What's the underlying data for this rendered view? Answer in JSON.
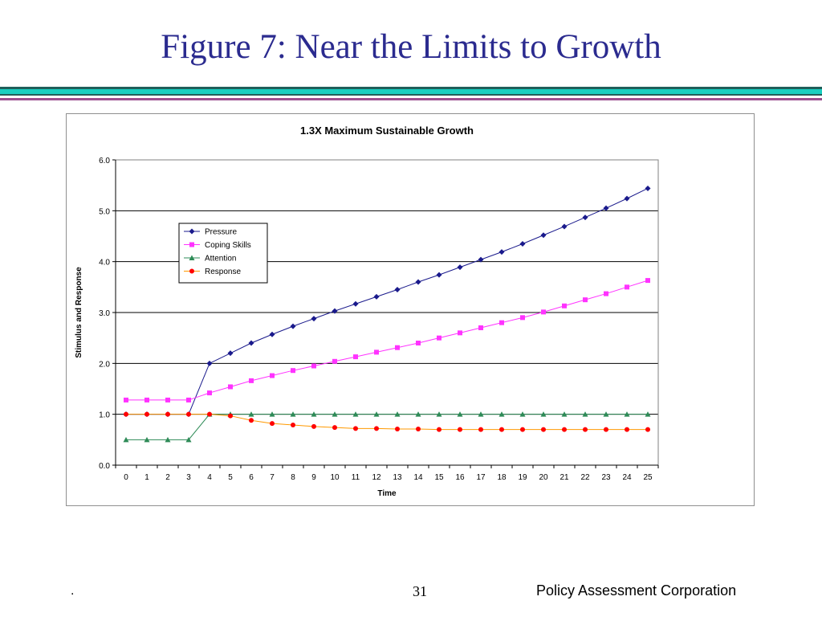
{
  "slide": {
    "title": "Figure 7: Near the Limits to Growth",
    "footer_left": ".",
    "page_number": "31",
    "organization": "Policy Assessment Corporation"
  },
  "colors": {
    "title": "#2b2b8f",
    "rule_dark": "#1f5f5a",
    "rule_teal": "#19cfc0",
    "rule_purple": "#9b4f8f",
    "pressure": "#1a1a8c",
    "coping": "#ff33ff",
    "attention": "#2e8b57",
    "response": "#ff9900",
    "response_marker": "#ff0000"
  },
  "chart_data": {
    "type": "line",
    "title": "1.3X Maximum Sustainable Growth",
    "xlabel": "Time",
    "ylabel": "Stimulus and Response",
    "x": [
      0,
      1,
      2,
      3,
      4,
      5,
      6,
      7,
      8,
      9,
      10,
      11,
      12,
      13,
      14,
      15,
      16,
      17,
      18,
      19,
      20,
      21,
      22,
      23,
      24,
      25
    ],
    "ylim": [
      0,
      6
    ],
    "yticks": [
      "0.0",
      "1.0",
      "2.0",
      "3.0",
      "4.0",
      "5.0",
      "6.0"
    ],
    "grid": true,
    "legend": "upper-left",
    "series": [
      {
        "name": "Pressure",
        "marker": "diamond",
        "values": [
          1.0,
          1.0,
          1.0,
          1.0,
          2.0,
          2.2,
          2.4,
          2.57,
          2.73,
          2.88,
          3.03,
          3.17,
          3.31,
          3.45,
          3.6,
          3.74,
          3.89,
          4.04,
          4.19,
          4.35,
          4.52,
          4.69,
          4.87,
          5.05,
          5.24,
          5.44
        ]
      },
      {
        "name": "Coping Skills",
        "marker": "square",
        "values": [
          1.28,
          1.28,
          1.28,
          1.28,
          1.42,
          1.54,
          1.66,
          1.76,
          1.86,
          1.95,
          2.04,
          2.13,
          2.22,
          2.31,
          2.4,
          2.5,
          2.6,
          2.7,
          2.8,
          2.9,
          3.01,
          3.13,
          3.25,
          3.37,
          3.5,
          3.63
        ]
      },
      {
        "name": "Attention",
        "marker": "triangle",
        "values": [
          0.5,
          0.5,
          0.5,
          0.5,
          1.0,
          1.0,
          1.0,
          1.0,
          1.0,
          1.0,
          1.0,
          1.0,
          1.0,
          1.0,
          1.0,
          1.0,
          1.0,
          1.0,
          1.0,
          1.0,
          1.0,
          1.0,
          1.0,
          1.0,
          1.0,
          1.0
        ]
      },
      {
        "name": "Response",
        "marker": "circle",
        "values": [
          1.0,
          1.0,
          1.0,
          1.0,
          1.0,
          0.97,
          0.88,
          0.82,
          0.79,
          0.76,
          0.74,
          0.72,
          0.72,
          0.71,
          0.71,
          0.7,
          0.7,
          0.7,
          0.7,
          0.7,
          0.7,
          0.7,
          0.7,
          0.7,
          0.7,
          0.7
        ]
      }
    ]
  }
}
